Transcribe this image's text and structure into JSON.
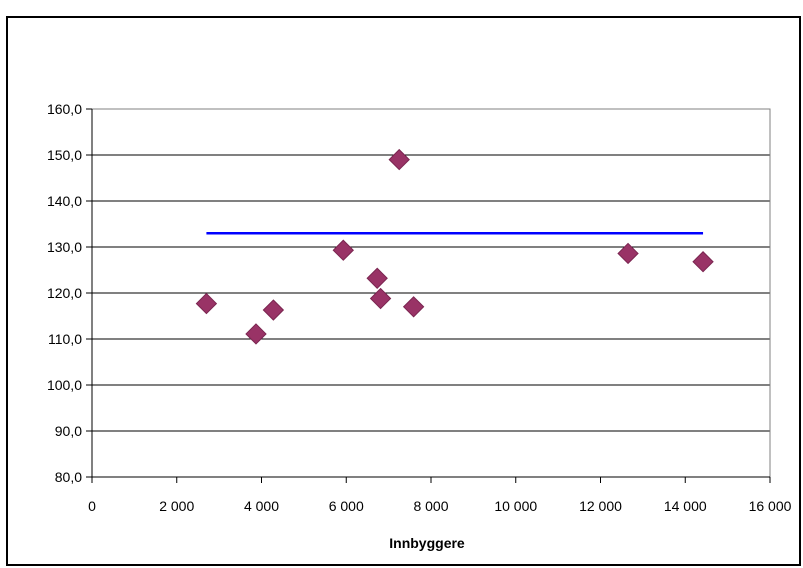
{
  "chart_data": {
    "type": "scatter",
    "xlabel": "Innbyggere",
    "ylabel": "",
    "xlim": [
      0,
      16000
    ],
    "ylim": [
      80,
      160
    ],
    "x_ticks": [
      0,
      2000,
      4000,
      6000,
      8000,
      10000,
      12000,
      14000,
      16000
    ],
    "x_tick_labels": [
      "0",
      "2 000",
      "4 000",
      "6 000",
      "8 000",
      "10 000",
      "12 000",
      "14 000",
      "16 000"
    ],
    "y_ticks": [
      80,
      90,
      100,
      110,
      120,
      130,
      140,
      150,
      160
    ],
    "y_tick_labels": [
      "80,0",
      "90,0",
      "100,0",
      "110,0",
      "120,0",
      "130,0",
      "140,0",
      "150,0",
      "160,0"
    ],
    "grid": "horizontal",
    "legend": "none",
    "series": [
      {
        "type": "scatter",
        "marker": "diamond",
        "color": "#993366",
        "points": [
          {
            "x": 2700,
            "y": 117.7
          },
          {
            "x": 3870,
            "y": 111.1
          },
          {
            "x": 4280,
            "y": 116.3
          },
          {
            "x": 5930,
            "y": 129.3
          },
          {
            "x": 6730,
            "y": 123.2
          },
          {
            "x": 6810,
            "y": 118.8
          },
          {
            "x": 7250,
            "y": 149.0
          },
          {
            "x": 7590,
            "y": 117.0
          },
          {
            "x": 12650,
            "y": 128.6
          },
          {
            "x": 14420,
            "y": 126.8
          }
        ]
      },
      {
        "type": "line",
        "color": "#0000FF",
        "points": [
          {
            "x": 2700,
            "y": 133.0
          },
          {
            "x": 14420,
            "y": 133.0
          }
        ]
      }
    ]
  }
}
